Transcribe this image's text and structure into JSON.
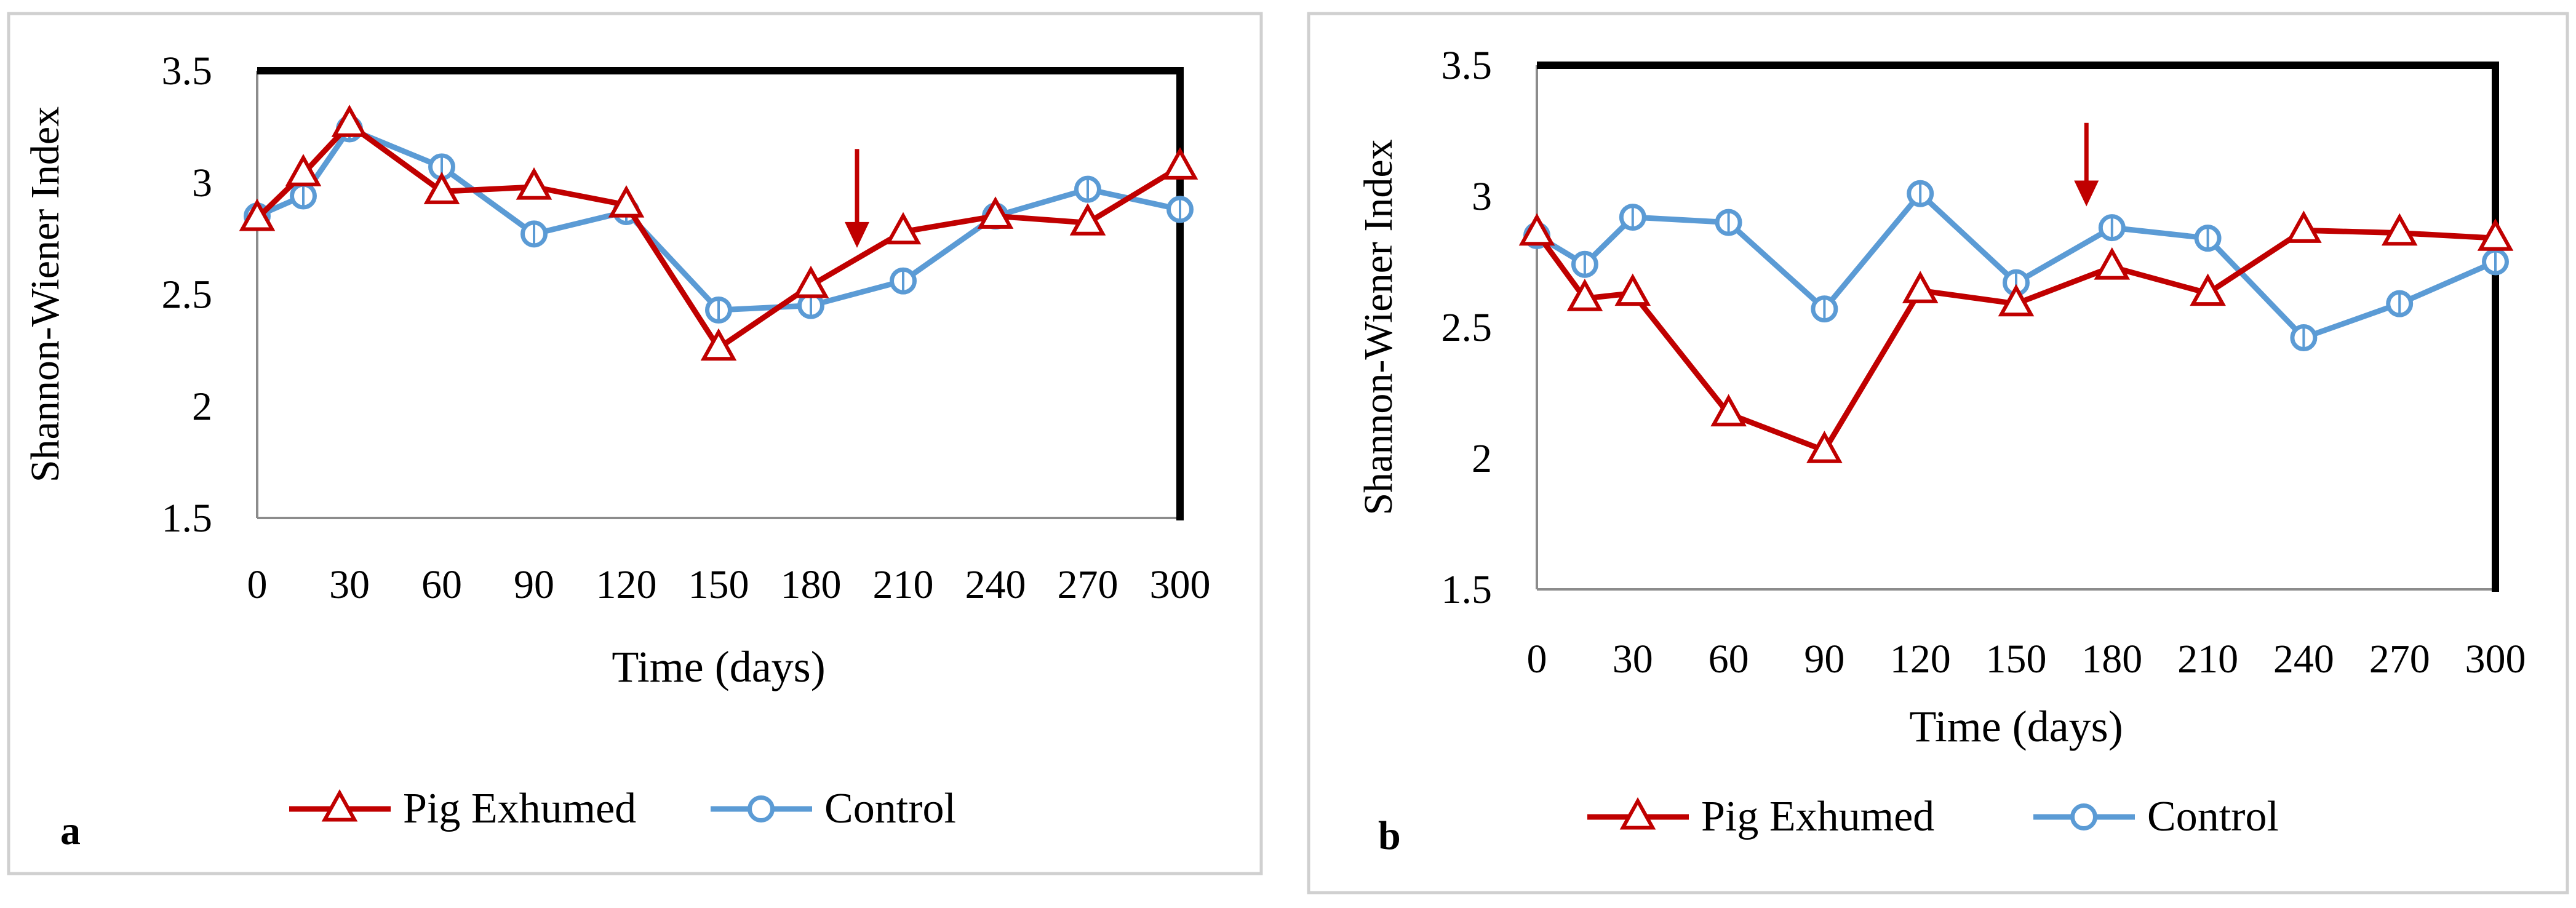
{
  "colors": {
    "pig": "#c00000",
    "control": "#5b9bd5",
    "frame": "#000000",
    "panel_border": "#d0d0d0"
  },
  "chart_data": [
    {
      "id": "a",
      "panel_label": "a",
      "type": "line",
      "title": "",
      "xlabel": "Time (days)",
      "ylabel": "Shannon-Wiener Index",
      "x": [
        0,
        15,
        30,
        60,
        90,
        120,
        150,
        180,
        210,
        240,
        270,
        300
      ],
      "x_ticks": [
        "0",
        "30",
        "60",
        "90",
        "120",
        "150",
        "180",
        "210",
        "240",
        "270",
        "300"
      ],
      "y_ticks": [
        "1.5",
        "2",
        "2.5",
        "3",
        "3.5"
      ],
      "ylim": [
        1.5,
        3.5
      ],
      "xlim": [
        0,
        300
      ],
      "grid": false,
      "legend_position": "bottom",
      "annotation": {
        "type": "arrow",
        "x": 195,
        "y_from": 3.15,
        "y_to": 2.73
      },
      "series": [
        {
          "name": "Pig Exhumed",
          "marker": "triangle",
          "values": [
            2.84,
            3.04,
            3.26,
            2.96,
            2.98,
            2.9,
            2.26,
            2.54,
            2.78,
            2.85,
            2.82,
            3.07
          ]
        },
        {
          "name": "Control",
          "marker": "circle",
          "values": [
            2.85,
            2.94,
            3.24,
            3.07,
            2.77,
            2.87,
            2.43,
            2.45,
            2.56,
            2.85,
            2.97,
            2.88
          ]
        }
      ]
    },
    {
      "id": "b",
      "panel_label": "b",
      "type": "line",
      "title": "",
      "xlabel": "Time (days)",
      "ylabel": "Shannon-Wiener Index",
      "x": [
        0,
        15,
        30,
        60,
        90,
        120,
        150,
        180,
        210,
        240,
        270,
        300
      ],
      "x_ticks": [
        "0",
        "30",
        "60",
        "90",
        "120",
        "150",
        "180",
        "210",
        "240",
        "270",
        "300"
      ],
      "y_ticks": [
        "1.5",
        "2",
        "2.5",
        "3",
        "3.5"
      ],
      "ylim": [
        1.5,
        3.5
      ],
      "xlim": [
        0,
        300
      ],
      "grid": false,
      "legend_position": "bottom",
      "annotation": {
        "type": "arrow",
        "x": 172,
        "y_from": 3.28,
        "y_to": 2.98
      },
      "series": [
        {
          "name": "Pig Exhumed",
          "marker": "triangle",
          "values": [
            2.86,
            2.61,
            2.63,
            2.17,
            2.03,
            2.64,
            2.59,
            2.73,
            2.63,
            2.87,
            2.86,
            2.84
          ]
        },
        {
          "name": "Control",
          "marker": "circle",
          "values": [
            2.85,
            2.74,
            2.92,
            2.9,
            2.57,
            3.01,
            2.67,
            2.88,
            2.84,
            2.46,
            2.59,
            2.75
          ]
        }
      ]
    }
  ]
}
